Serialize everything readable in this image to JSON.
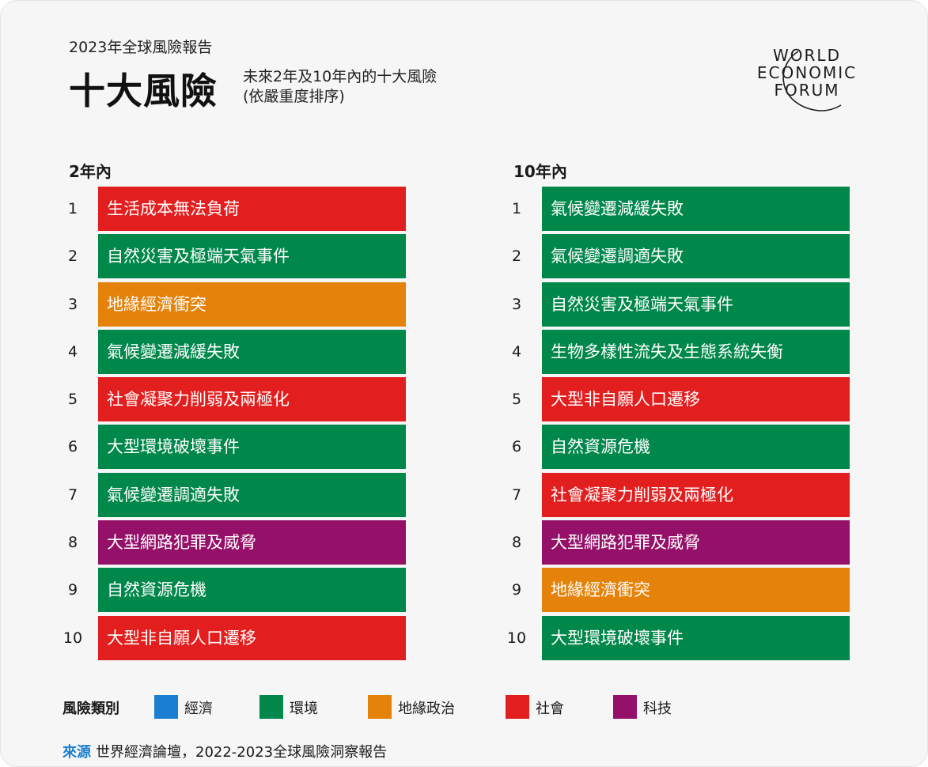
{
  "header": {
    "report_label": "2023年全球風險報告",
    "title": "十大風險",
    "subtitle_line1": "未來2年及10年內的十大風險",
    "subtitle_line2": "(依嚴重度排序)"
  },
  "logo": {
    "line1": "WORLD",
    "line2": "ECONOMIC",
    "line3": "FORUM"
  },
  "categories": {
    "economic": {
      "label": "經濟",
      "color": "#1a7fd1"
    },
    "environmental": {
      "label": "環境",
      "color": "#00874a"
    },
    "geopolitical": {
      "label": "地緣政治",
      "color": "#e5820a"
    },
    "societal": {
      "label": "社會",
      "color": "#e31e1e"
    },
    "technological": {
      "label": "科技",
      "color": "#951068"
    }
  },
  "short_term": {
    "heading": "2年內",
    "items": [
      {
        "rank": "1",
        "label": "生活成本無法負荷",
        "category": "societal"
      },
      {
        "rank": "2",
        "label": "自然災害及極端天氣事件",
        "category": "environmental"
      },
      {
        "rank": "3",
        "label": "地緣經濟衝突",
        "category": "geopolitical"
      },
      {
        "rank": "4",
        "label": "氣候變遷減緩失敗",
        "category": "environmental"
      },
      {
        "rank": "5",
        "label": "社會凝聚力削弱及兩極化",
        "category": "societal"
      },
      {
        "rank": "6",
        "label": "大型環境破壞事件",
        "category": "environmental"
      },
      {
        "rank": "7",
        "label": "氣候變遷調適失敗",
        "category": "environmental"
      },
      {
        "rank": "8",
        "label": "大型網路犯罪及威脅",
        "category": "technological"
      },
      {
        "rank": "9",
        "label": "自然資源危機",
        "category": "environmental"
      },
      {
        "rank": "10",
        "label": "大型非自願人口遷移",
        "category": "societal"
      }
    ]
  },
  "long_term": {
    "heading": "10年內",
    "items": [
      {
        "rank": "1",
        "label": "氣候變遷減緩失敗",
        "category": "environmental"
      },
      {
        "rank": "2",
        "label": "氣候變遷調適失敗",
        "category": "environmental"
      },
      {
        "rank": "3",
        "label": "自然災害及極端天氣事件",
        "category": "environmental"
      },
      {
        "rank": "4",
        "label": "生物多樣性流失及生態系統失衡",
        "category": "environmental"
      },
      {
        "rank": "5",
        "label": "大型非自願人口遷移",
        "category": "societal"
      },
      {
        "rank": "6",
        "label": "自然資源危機",
        "category": "environmental"
      },
      {
        "rank": "7",
        "label": "社會凝聚力削弱及兩極化",
        "category": "societal"
      },
      {
        "rank": "8",
        "label": "大型網路犯罪及威脅",
        "category": "technological"
      },
      {
        "rank": "9",
        "label": "地緣經濟衝突",
        "category": "geopolitical"
      },
      {
        "rank": "10",
        "label": "大型環境破壞事件",
        "category": "environmental"
      }
    ]
  },
  "legend": {
    "title": "風險類別"
  },
  "source": {
    "label": "來源",
    "text": "世界經濟論壇，2022-2023全球風險洞察報告"
  }
}
